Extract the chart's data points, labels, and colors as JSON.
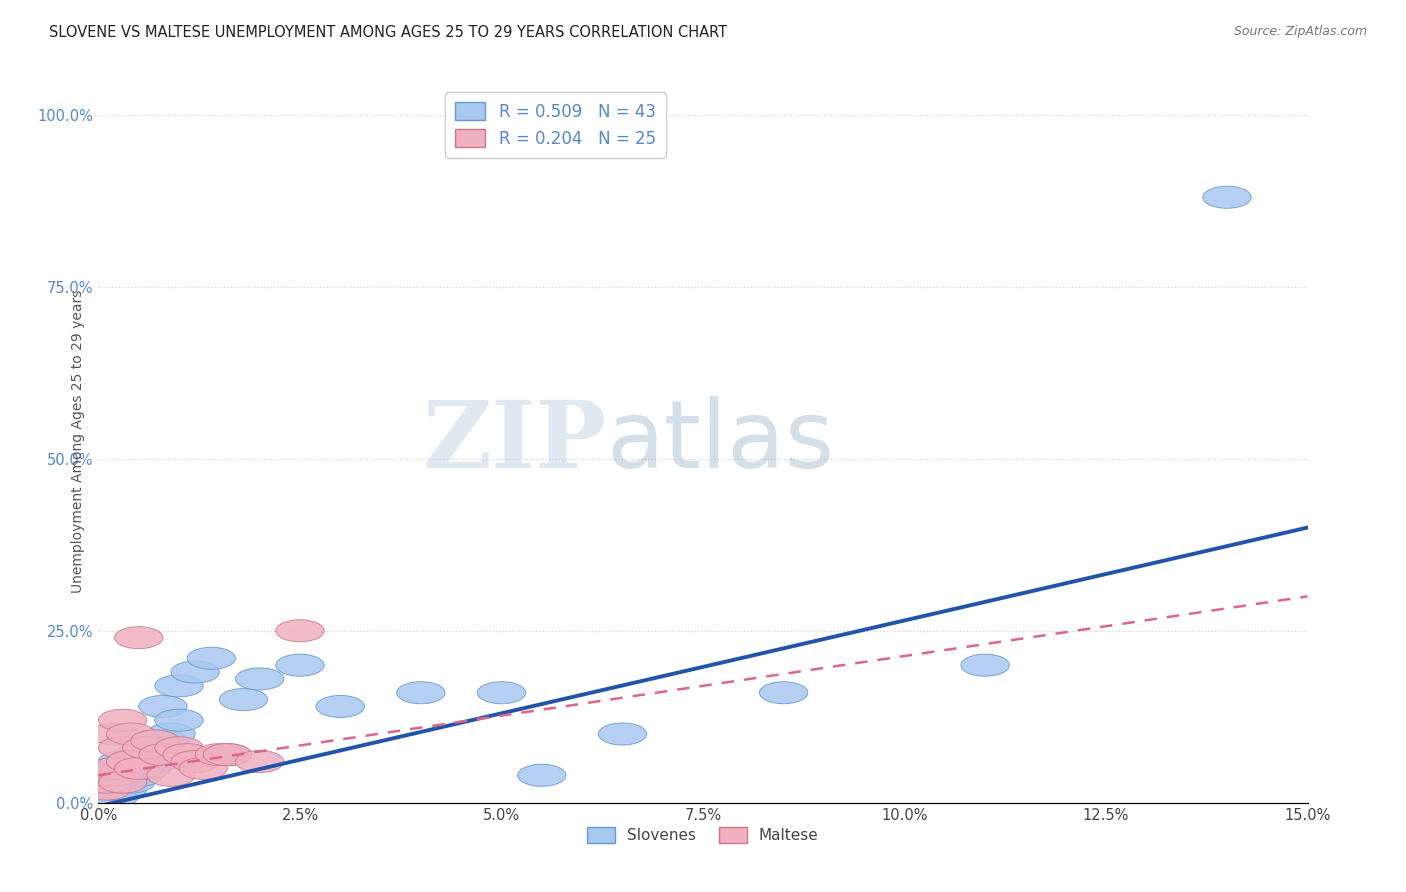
{
  "title": "SLOVENE VS MALTESE UNEMPLOYMENT AMONG AGES 25 TO 29 YEARS CORRELATION CHART",
  "source": "Source: ZipAtlas.com",
  "ylabel": "Unemployment Among Ages 25 to 29 years",
  "xlim": [
    0.0,
    0.15
  ],
  "ylim": [
    0.0,
    1.05
  ],
  "ytick_positions": [
    0.0,
    0.25,
    0.5,
    0.75,
    1.0
  ],
  "ytick_labels": [
    "0.0%",
    "25.0%",
    "50.0%",
    "75.0%",
    "100.0%"
  ],
  "xtick_positions": [
    0.0,
    0.025,
    0.05,
    0.075,
    0.1,
    0.125,
    0.15
  ],
  "xtick_labels": [
    "0.0%",
    "2.5%",
    "5.0%",
    "7.5%",
    "10.0%",
    "12.5%",
    "15.0%"
  ],
  "slovene_color": "#A8C8F0",
  "maltese_color": "#F0B0C0",
  "slovene_edge_color": "#6699CC",
  "maltese_edge_color": "#CC7788",
  "slovene_line_color": "#2255AA",
  "maltese_line_color": "#DD6688",
  "legend_r_slovene": "R = 0.509",
  "legend_n_slovene": "N = 43",
  "legend_r_maltese": "R = 0.204",
  "legend_n_maltese": "N = 25",
  "watermark_zip": "ZIP",
  "watermark_atlas": "atlas",
  "slovene_x": [
    0.001,
    0.001,
    0.001,
    0.002,
    0.002,
    0.002,
    0.002,
    0.002,
    0.003,
    0.003,
    0.003,
    0.003,
    0.003,
    0.004,
    0.004,
    0.004,
    0.004,
    0.005,
    0.005,
    0.005,
    0.006,
    0.006,
    0.007,
    0.007,
    0.008,
    0.008,
    0.009,
    0.01,
    0.01,
    0.012,
    0.014,
    0.016,
    0.018,
    0.02,
    0.025,
    0.03,
    0.04,
    0.05,
    0.055,
    0.065,
    0.085,
    0.11,
    0.14
  ],
  "slovene_y": [
    0.01,
    0.02,
    0.03,
    0.01,
    0.02,
    0.03,
    0.04,
    0.05,
    0.02,
    0.03,
    0.04,
    0.05,
    0.06,
    0.03,
    0.04,
    0.05,
    0.06,
    0.04,
    0.05,
    0.07,
    0.05,
    0.07,
    0.06,
    0.09,
    0.09,
    0.14,
    0.1,
    0.12,
    0.17,
    0.19,
    0.21,
    0.07,
    0.15,
    0.18,
    0.2,
    0.14,
    0.16,
    0.16,
    0.04,
    0.1,
    0.16,
    0.2,
    0.88
  ],
  "maltese_x": [
    0.001,
    0.001,
    0.001,
    0.002,
    0.002,
    0.002,
    0.003,
    0.003,
    0.003,
    0.004,
    0.004,
    0.005,
    0.005,
    0.006,
    0.007,
    0.008,
    0.009,
    0.01,
    0.011,
    0.012,
    0.013,
    0.015,
    0.016,
    0.02,
    0.025
  ],
  "maltese_y": [
    0.02,
    0.03,
    0.04,
    0.04,
    0.05,
    0.1,
    0.03,
    0.08,
    0.12,
    0.06,
    0.1,
    0.05,
    0.24,
    0.08,
    0.09,
    0.07,
    0.04,
    0.08,
    0.07,
    0.06,
    0.05,
    0.07,
    0.07,
    0.06,
    0.25
  ],
  "slovene_line_x0": 0.0,
  "slovene_line_y0": -0.005,
  "slovene_line_x1": 0.15,
  "slovene_line_y1": 0.4,
  "maltese_line_x0": 0.0,
  "maltese_line_y0": 0.04,
  "maltese_line_x1": 0.15,
  "maltese_line_y1": 0.3,
  "background_color": "#FFFFFF",
  "grid_color": "#CCCCCC"
}
